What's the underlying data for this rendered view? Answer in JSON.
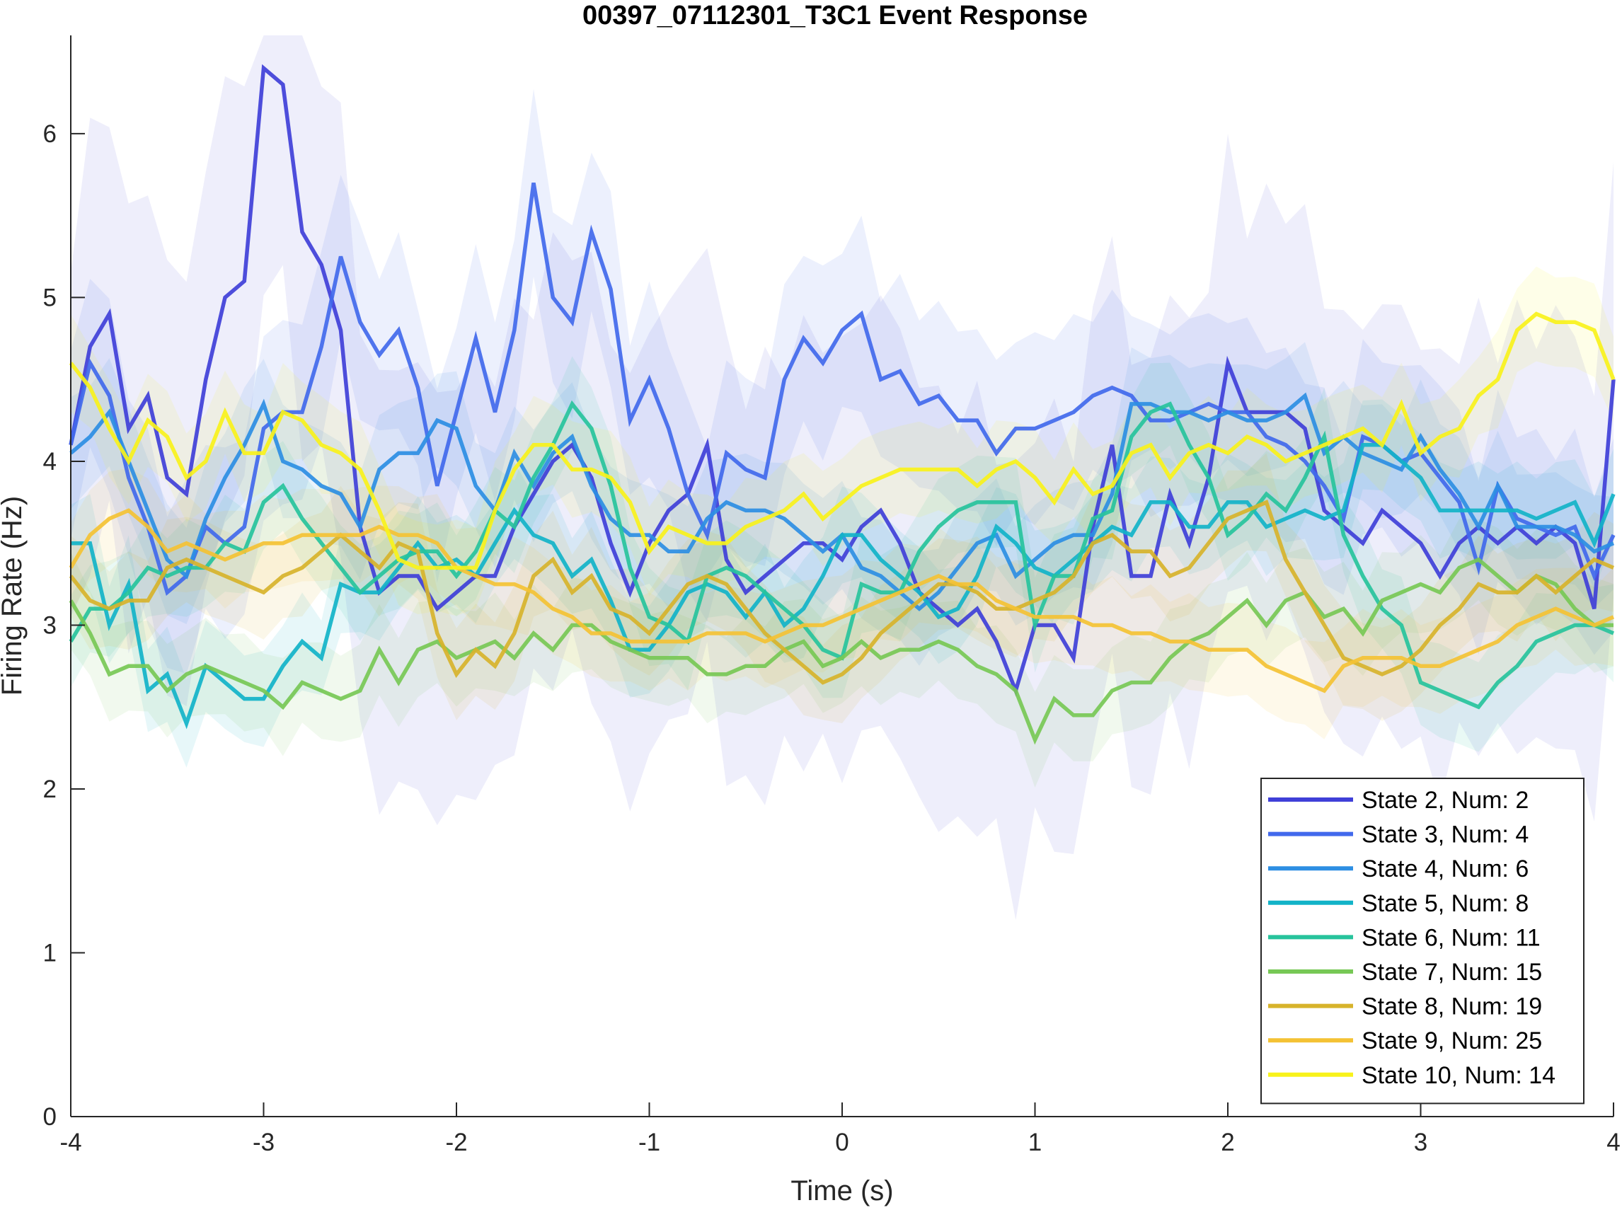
{
  "chart_data": {
    "type": "line",
    "title": "00397_07112301_T3C1 Event Response",
    "xlabel": "Time (s)",
    "ylabel": "Firing Rate (Hz)",
    "xlim": [
      -4,
      4
    ],
    "ylim": [
      0,
      6.6
    ],
    "xticks": [
      -4,
      -3,
      -2,
      -1,
      0,
      1,
      2,
      3,
      4
    ],
    "yticks": [
      0,
      1,
      2,
      3,
      4,
      5,
      6
    ],
    "grid": false,
    "legend_position": "bottom-right",
    "x": [
      -4,
      -3.9,
      -3.8,
      -3.7,
      -3.6,
      -3.5,
      -3.4,
      -3.3,
      -3.2,
      -3.1,
      -3,
      -2.9,
      -2.8,
      -2.7,
      -2.6,
      -2.5,
      -2.4,
      -2.3,
      -2.2,
      -2.1,
      -2,
      -1.9,
      -1.8,
      -1.7,
      -1.6,
      -1.5,
      -1.4,
      -1.3,
      -1.2,
      -1.1,
      -1,
      -0.9,
      -0.8,
      -0.7,
      -0.6,
      -0.5,
      -0.4,
      -0.3,
      -0.2,
      -0.1,
      0,
      0.1,
      0.2,
      0.3,
      0.4,
      0.5,
      0.6,
      0.7,
      0.8,
      0.9,
      1,
      1.1,
      1.2,
      1.3,
      1.4,
      1.5,
      1.6,
      1.7,
      1.8,
      1.9,
      2,
      2.1,
      2.2,
      2.3,
      2.4,
      2.5,
      2.6,
      2.7,
      2.8,
      2.9,
      3,
      3.1,
      3.2,
      3.3,
      3.4,
      3.5,
      3.6,
      3.7,
      3.8,
      3.9,
      4
    ],
    "series": [
      {
        "name": "State 2, Num: 2",
        "color": "#3f3fd8",
        "band": 1.4,
        "values": [
          4.1,
          4.7,
          4.9,
          4.2,
          4.4,
          3.9,
          3.8,
          4.5,
          5.0,
          5.1,
          6.4,
          6.3,
          5.4,
          5.2,
          4.8,
          3.6,
          3.2,
          3.3,
          3.3,
          3.1,
          3.2,
          3.3,
          3.3,
          3.6,
          3.8,
          4.0,
          4.1,
          3.9,
          3.5,
          3.2,
          3.5,
          3.7,
          3.8,
          4.1,
          3.4,
          3.2,
          3.3,
          3.4,
          3.5,
          3.5,
          3.4,
          3.6,
          3.7,
          3.5,
          3.2,
          3.1,
          3.0,
          3.1,
          2.9,
          2.6,
          3.0,
          3.0,
          2.8,
          3.6,
          4.1,
          3.3,
          3.3,
          3.8,
          3.5,
          3.9,
          4.6,
          4.3,
          4.3,
          4.3,
          4.2,
          3.7,
          3.6,
          3.5,
          3.7,
          3.6,
          3.5,
          3.3,
          3.5,
          3.6,
          3.5,
          3.6,
          3.5,
          3.6,
          3.5,
          3.1,
          4.5
        ]
      },
      {
        "name": "State 3, Num: 4",
        "color": "#4169ec",
        "band": 0.6,
        "values": [
          4.1,
          4.6,
          4.4,
          3.9,
          3.6,
          3.2,
          3.3,
          3.6,
          3.5,
          3.6,
          4.2,
          4.3,
          4.3,
          4.7,
          5.25,
          4.85,
          4.65,
          4.8,
          4.45,
          3.85,
          4.3,
          4.75,
          4.3,
          4.8,
          5.7,
          5.0,
          4.85,
          5.4,
          5.05,
          4.25,
          4.5,
          4.2,
          3.8,
          3.55,
          4.05,
          3.95,
          3.9,
          4.5,
          4.75,
          4.6,
          4.8,
          4.9,
          4.5,
          4.55,
          4.35,
          4.4,
          4.25,
          4.25,
          4.05,
          4.2,
          4.2,
          4.25,
          4.3,
          4.4,
          4.45,
          4.4,
          4.25,
          4.25,
          4.3,
          4.35,
          4.3,
          4.3,
          4.15,
          4.1,
          4.0,
          3.85,
          3.65,
          4.15,
          4.1,
          4.0,
          4.05,
          3.9,
          3.75,
          3.35,
          3.85,
          3.65,
          3.6,
          3.55,
          3.6,
          3.3,
          3.55
        ]
      },
      {
        "name": "State 4, Num: 6",
        "color": "#2d8ee3",
        "band": 0.35,
        "values": [
          4.05,
          4.15,
          4.3,
          4.0,
          3.7,
          3.4,
          3.3,
          3.65,
          3.9,
          4.1,
          4.35,
          4.0,
          3.95,
          3.85,
          3.8,
          3.6,
          3.95,
          4.05,
          4.05,
          4.25,
          4.2,
          3.85,
          3.7,
          4.05,
          3.85,
          4.05,
          4.15,
          3.85,
          3.65,
          3.55,
          3.55,
          3.45,
          3.45,
          3.65,
          3.75,
          3.7,
          3.7,
          3.65,
          3.55,
          3.45,
          3.55,
          3.35,
          3.3,
          3.2,
          3.1,
          3.2,
          3.35,
          3.5,
          3.55,
          3.3,
          3.4,
          3.5,
          3.55,
          3.55,
          3.8,
          4.35,
          4.35,
          4.3,
          4.3,
          4.25,
          4.3,
          4.25,
          4.25,
          4.3,
          4.4,
          4.05,
          4.15,
          4.05,
          4.0,
          3.95,
          4.15,
          3.95,
          3.8,
          3.6,
          3.85,
          3.6,
          3.6,
          3.6,
          3.55,
          3.45,
          3.5
        ]
      },
      {
        "name": "State 5, Num: 8",
        "color": "#12b3c8",
        "band": 0.3,
        "values": [
          3.5,
          3.5,
          3.0,
          3.25,
          2.6,
          2.7,
          2.4,
          2.75,
          2.65,
          2.55,
          2.55,
          2.75,
          2.9,
          2.8,
          3.25,
          3.2,
          3.2,
          3.35,
          3.5,
          3.35,
          3.4,
          3.3,
          3.5,
          3.7,
          3.55,
          3.5,
          3.3,
          3.4,
          3.15,
          2.85,
          2.85,
          3.0,
          3.2,
          3.25,
          3.2,
          3.05,
          3.2,
          3.0,
          3.1,
          3.3,
          3.55,
          3.55,
          3.4,
          3.3,
          3.2,
          3.05,
          3.1,
          3.3,
          3.6,
          3.5,
          3.35,
          3.3,
          3.4,
          3.5,
          3.6,
          3.55,
          3.75,
          3.75,
          3.6,
          3.6,
          3.75,
          3.75,
          3.6,
          3.65,
          3.7,
          3.65,
          3.7,
          4.1,
          4.1,
          4.0,
          3.9,
          3.7,
          3.7,
          3.7,
          3.7,
          3.7,
          3.65,
          3.7,
          3.75,
          3.5,
          3.8
        ]
      },
      {
        "name": "State 6, Num: 11",
        "color": "#27c39c",
        "band": 0.3,
        "values": [
          2.9,
          3.1,
          3.1,
          3.2,
          3.35,
          3.3,
          3.35,
          3.35,
          3.5,
          3.45,
          3.75,
          3.85,
          3.65,
          3.5,
          3.35,
          3.2,
          3.3,
          3.4,
          3.45,
          3.45,
          3.3,
          3.45,
          3.7,
          3.6,
          3.9,
          4.1,
          4.35,
          4.2,
          3.85,
          3.35,
          3.05,
          3.0,
          2.9,
          3.3,
          3.35,
          3.3,
          3.2,
          3.1,
          3.0,
          2.85,
          2.8,
          3.25,
          3.2,
          3.2,
          3.45,
          3.6,
          3.7,
          3.75,
          3.75,
          3.75,
          3.0,
          3.3,
          3.3,
          3.65,
          3.7,
          4.15,
          4.3,
          4.35,
          4.1,
          3.9,
          3.55,
          3.65,
          3.8,
          3.7,
          3.9,
          4.15,
          3.55,
          3.3,
          3.1,
          3.0,
          2.65,
          2.6,
          2.55,
          2.5,
          2.65,
          2.75,
          2.9,
          2.95,
          3.0,
          3.0,
          2.95
        ]
      },
      {
        "name": "State 7, Num: 15",
        "color": "#77c855",
        "band": 0.3,
        "values": [
          3.15,
          2.95,
          2.7,
          2.75,
          2.75,
          2.6,
          2.7,
          2.75,
          2.7,
          2.65,
          2.6,
          2.5,
          2.65,
          2.6,
          2.55,
          2.6,
          2.85,
          2.65,
          2.85,
          2.9,
          2.8,
          2.85,
          2.9,
          2.8,
          2.95,
          2.85,
          3.0,
          3.0,
          2.9,
          2.85,
          2.8,
          2.8,
          2.8,
          2.7,
          2.7,
          2.75,
          2.75,
          2.85,
          2.9,
          2.75,
          2.8,
          2.9,
          2.8,
          2.85,
          2.85,
          2.9,
          2.85,
          2.75,
          2.7,
          2.6,
          2.3,
          2.55,
          2.45,
          2.45,
          2.6,
          2.65,
          2.65,
          2.8,
          2.9,
          2.95,
          3.05,
          3.15,
          3.0,
          3.15,
          3.2,
          3.05,
          3.1,
          2.95,
          3.15,
          3.2,
          3.25,
          3.2,
          3.35,
          3.4,
          3.3,
          3.2,
          3.3,
          3.25,
          3.1,
          3.0,
          3.0
        ]
      },
      {
        "name": "State 8, Num: 19",
        "color": "#d7b32b",
        "band": 0.3,
        "values": [
          3.3,
          3.15,
          3.1,
          3.15,
          3.15,
          3.35,
          3.4,
          3.35,
          3.3,
          3.25,
          3.2,
          3.3,
          3.35,
          3.45,
          3.55,
          3.45,
          3.35,
          3.5,
          3.45,
          2.95,
          2.7,
          2.85,
          2.75,
          2.95,
          3.3,
          3.4,
          3.2,
          3.3,
          3.1,
          3.05,
          2.95,
          3.1,
          3.25,
          3.3,
          3.25,
          3.1,
          2.95,
          2.85,
          2.75,
          2.65,
          2.7,
          2.8,
          2.95,
          3.05,
          3.15,
          3.25,
          3.25,
          3.2,
          3.1,
          3.1,
          3.15,
          3.2,
          3.3,
          3.5,
          3.55,
          3.45,
          3.45,
          3.3,
          3.35,
          3.5,
          3.65,
          3.7,
          3.75,
          3.4,
          3.2,
          3.0,
          2.8,
          2.75,
          2.7,
          2.75,
          2.85,
          3.0,
          3.1,
          3.25,
          3.2,
          3.2,
          3.3,
          3.2,
          3.3,
          3.4,
          3.35
        ]
      },
      {
        "name": "State 9, Num: 25",
        "color": "#f4c234",
        "band": 0.3,
        "values": [
          3.35,
          3.55,
          3.65,
          3.7,
          3.6,
          3.45,
          3.5,
          3.45,
          3.4,
          3.45,
          3.5,
          3.5,
          3.55,
          3.55,
          3.55,
          3.55,
          3.6,
          3.55,
          3.55,
          3.5,
          3.35,
          3.3,
          3.25,
          3.25,
          3.2,
          3.1,
          3.05,
          2.95,
          2.95,
          2.9,
          2.9,
          2.9,
          2.9,
          2.95,
          2.95,
          2.95,
          2.9,
          2.95,
          3.0,
          3.0,
          3.05,
          3.1,
          3.15,
          3.2,
          3.25,
          3.3,
          3.25,
          3.25,
          3.15,
          3.1,
          3.05,
          3.05,
          3.05,
          3.0,
          3.0,
          2.95,
          2.95,
          2.9,
          2.9,
          2.85,
          2.85,
          2.85,
          2.75,
          2.7,
          2.65,
          2.6,
          2.75,
          2.8,
          2.8,
          2.8,
          2.75,
          2.75,
          2.8,
          2.85,
          2.9,
          3.0,
          3.05,
          3.1,
          3.05,
          3.0,
          3.05
        ]
      },
      {
        "name": "State 10, Num: 14",
        "color": "#f8f21b",
        "band": 0.3,
        "values": [
          4.6,
          4.45,
          4.2,
          4.0,
          4.25,
          4.15,
          3.9,
          4.0,
          4.3,
          4.05,
          4.05,
          4.3,
          4.25,
          4.1,
          4.05,
          3.95,
          3.7,
          3.4,
          3.35,
          3.35,
          3.35,
          3.35,
          3.7,
          3.95,
          4.1,
          4.1,
          3.95,
          3.95,
          3.9,
          3.75,
          3.45,
          3.6,
          3.55,
          3.5,
          3.5,
          3.6,
          3.65,
          3.7,
          3.8,
          3.65,
          3.75,
          3.85,
          3.9,
          3.95,
          3.95,
          3.95,
          3.95,
          3.85,
          3.95,
          4.0,
          3.9,
          3.75,
          3.95,
          3.8,
          3.85,
          4.05,
          4.1,
          3.9,
          4.05,
          4.1,
          4.05,
          4.15,
          4.1,
          4.0,
          4.05,
          4.1,
          4.15,
          4.2,
          4.1,
          4.35,
          4.05,
          4.15,
          4.2,
          4.4,
          4.5,
          4.8,
          4.9,
          4.85,
          4.85,
          4.8,
          4.5
        ]
      }
    ]
  }
}
